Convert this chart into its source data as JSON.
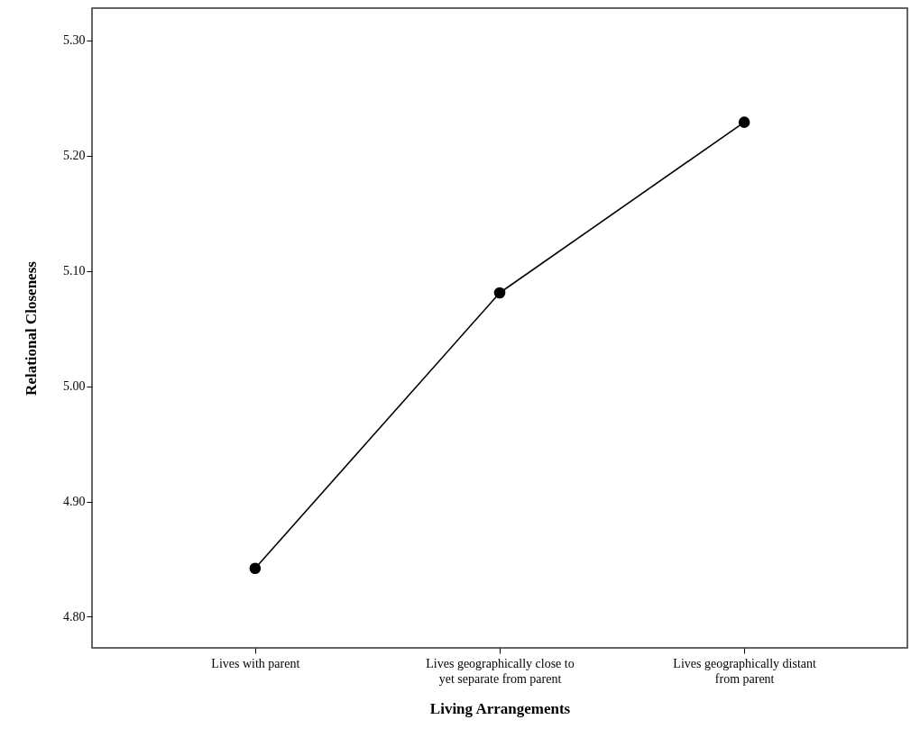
{
  "chart_data": {
    "type": "line",
    "xlabel": "Living Arrangements",
    "ylabel": "Relational Closeness",
    "categories": [
      "Lives with parent",
      "Lives geographically close to yet separate from parent",
      "Lives geographically distant from parent"
    ],
    "series": [
      {
        "color": "#000000",
        "values": [
          4.842,
          5.081,
          5.229
        ]
      }
    ],
    "ylim": [
      4.773,
      5.328
    ],
    "yticks": [
      {
        "value": 4.8,
        "label": "4.80"
      },
      {
        "value": 4.9,
        "label": "4.90"
      },
      {
        "value": 5.0,
        "label": "5.00"
      },
      {
        "value": 5.1,
        "label": "5.10"
      },
      {
        "value": 5.2,
        "label": "5.20"
      },
      {
        "value": 5.3,
        "label": "5.30"
      }
    ],
    "grid": false,
    "marker": "circle",
    "line_style": "solid"
  }
}
